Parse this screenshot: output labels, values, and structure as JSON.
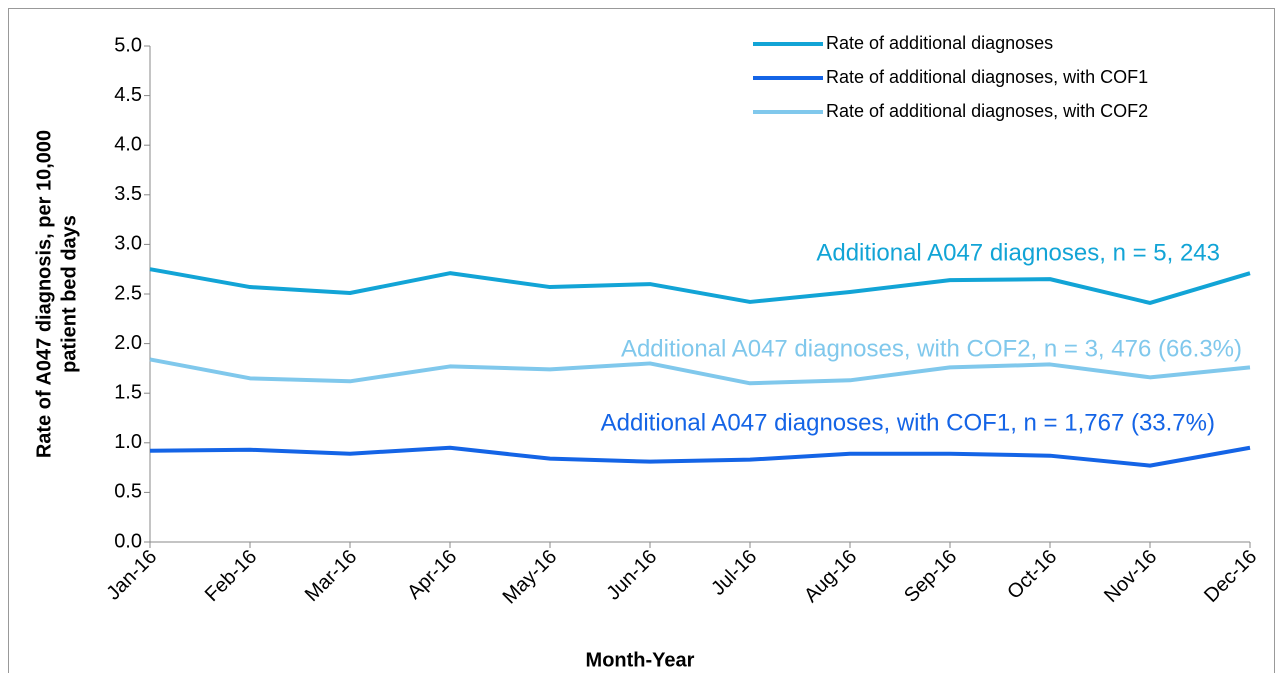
{
  "chart_data": {
    "type": "line",
    "y_label": [
      "Rate of A047 diagnosis, per 10,000",
      "patient bed days"
    ],
    "x_label": "Month-Year",
    "categories": [
      "Jan-16",
      "Feb-16",
      "Mar-16",
      "Apr-16",
      "May-16",
      "Jun-16",
      "Jul-16",
      "Aug-16",
      "Sep-16",
      "Oct-16",
      "Nov-16",
      "Dec-16"
    ],
    "series": [
      {
        "name": "Rate of additional diagnoses",
        "color": "#12a4d6",
        "values": [
          2.75,
          2.57,
          2.51,
          2.71,
          2.57,
          2.6,
          2.42,
          2.52,
          2.64,
          2.65,
          2.41,
          2.71
        ]
      },
      {
        "name": "Rate of additional diagnoses, with COF1",
        "color": "#1464e6",
        "values": [
          0.92,
          0.93,
          0.89,
          0.95,
          0.84,
          0.81,
          0.83,
          0.89,
          0.89,
          0.87,
          0.77,
          0.95
        ]
      },
      {
        "name": "Rate of additional diagnoses, with COF2",
        "color": "#80c8ec",
        "values": [
          1.84,
          1.65,
          1.62,
          1.77,
          1.74,
          1.8,
          1.6,
          1.63,
          1.76,
          1.79,
          1.66,
          1.76
        ]
      }
    ],
    "annotations": [
      {
        "text": "Additional A047 diagnoses, n = 5, 243",
        "color": "#12a4d6"
      },
      {
        "text": "Additional A047 diagnoses, with COF2, n = 3, 476 (66.3%)",
        "color": "#80c8ec"
      },
      {
        "text": "Additional A047 diagnoses, with COF1, n = 1,767 (33.7%)",
        "color": "#1464e6"
      }
    ],
    "ylim": [
      0,
      5
    ],
    "yticks": [
      {
        "value": 0,
        "label": "0.0"
      },
      0.5,
      {
        "value": 1,
        "label": "1.0"
      },
      1.5,
      {
        "value": 2,
        "label": "2.0"
      },
      2.5,
      {
        "value": 3,
        "label": "3.0"
      },
      3.5,
      {
        "value": 4,
        "label": "4.0"
      },
      4.5,
      {
        "value": 5,
        "label": "5.0"
      }
    ],
    "legend": "top-right",
    "grid": false
  }
}
